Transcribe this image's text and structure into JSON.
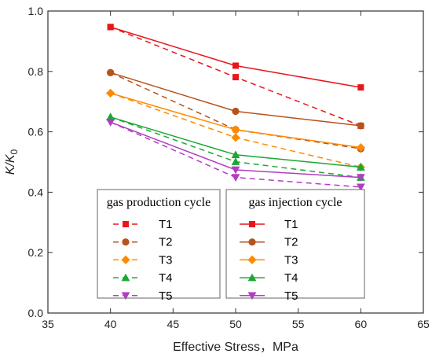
{
  "chart_data": {
    "type": "line",
    "xlabel": "Effective Stress，MPa",
    "ylabel_main": "K/K",
    "ylabel_sub": "0",
    "xlim": [
      35,
      65
    ],
    "ylim": [
      0.0,
      1.0
    ],
    "xticks": [
      "35",
      "40",
      "45",
      "50",
      "55",
      "60",
      "65"
    ],
    "yticks": [
      "0.0",
      "0.2",
      "0.4",
      "0.6",
      "0.8",
      "1.0"
    ],
    "grid": false,
    "x": [
      40,
      50,
      60
    ],
    "groups": [
      {
        "title": "gas production cycle",
        "line_style": "dashed",
        "legend_position": "bottom-left",
        "series": [
          {
            "name": "T1",
            "color": "#e8151b",
            "marker": "square",
            "values": [
              0.947,
              0.781,
              0.62
            ]
          },
          {
            "name": "T2",
            "color": "#b5531b",
            "marker": "circle",
            "values": [
              0.796,
              0.607,
              0.544
            ]
          },
          {
            "name": "T3",
            "color": "#ff8a00",
            "marker": "diamond",
            "values": [
              0.728,
              0.581,
              0.483
            ]
          },
          {
            "name": "T4",
            "color": "#1aa834",
            "marker": "triangle-up",
            "values": [
              0.649,
              0.501,
              0.449
            ]
          },
          {
            "name": "T5",
            "color": "#b03ec1",
            "marker": "triangle-down",
            "values": [
              0.632,
              0.449,
              0.417
            ]
          }
        ]
      },
      {
        "title": "gas injection cycle",
        "line_style": "solid",
        "legend_position": "bottom-center",
        "series": [
          {
            "name": "T1",
            "color": "#e8151b",
            "marker": "square",
            "values": [
              0.947,
              0.819,
              0.747
            ]
          },
          {
            "name": "T2",
            "color": "#b5531b",
            "marker": "circle",
            "values": [
              0.796,
              0.668,
              0.62
            ]
          },
          {
            "name": "T3",
            "color": "#ff8a00",
            "marker": "diamond",
            "values": [
              0.728,
              0.607,
              0.548
            ]
          },
          {
            "name": "T4",
            "color": "#1aa834",
            "marker": "triangle-up",
            "values": [
              0.649,
              0.524,
              0.483
            ]
          },
          {
            "name": "T5",
            "color": "#b03ec1",
            "marker": "triangle-down",
            "values": [
              0.632,
              0.474,
              0.449
            ]
          }
        ]
      }
    ]
  }
}
